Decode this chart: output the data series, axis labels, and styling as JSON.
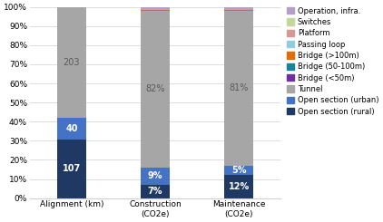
{
  "categories": [
    "Alignment (km)",
    "Construction\n(CO2e)",
    "Maintenance\n(CO2e)"
  ],
  "series": [
    {
      "label": "Open section (rural)",
      "color": "#1F3864",
      "values": [
        30.5,
        7.0,
        12.0
      ]
    },
    {
      "label": "Open section (urban)",
      "color": "#4472C4",
      "values": [
        11.4,
        9.0,
        5.0
      ]
    },
    {
      "label": "Tunnel",
      "color": "#A6A6A6",
      "values": [
        57.9,
        82.0,
        81.0
      ]
    },
    {
      "label": "Bridge (<50m)",
      "color": "#7030A0",
      "values": [
        0.0,
        0.0,
        0.0
      ]
    },
    {
      "label": "Bridge (50-100m)",
      "color": "#17849C",
      "values": [
        0.0,
        0.0,
        0.0
      ]
    },
    {
      "label": "Bridge (>100m)",
      "color": "#E36C0A",
      "values": [
        0.2,
        0.5,
        0.5
      ]
    },
    {
      "label": "Passing loop",
      "color": "#92CDDC",
      "values": [
        0.0,
        0.0,
        0.0
      ]
    },
    {
      "label": "Platform",
      "color": "#DA9694",
      "values": [
        0.2,
        0.3,
        0.3
      ]
    },
    {
      "label": "Switches",
      "color": "#C4D79B",
      "values": [
        0.2,
        0.3,
        0.3
      ]
    },
    {
      "label": "Operation, infra.",
      "color": "#B1A0C7",
      "values": [
        0.6,
        0.9,
        0.9
      ]
    }
  ],
  "ylim": [
    0,
    100
  ],
  "yticks": [
    0,
    10,
    20,
    30,
    40,
    50,
    60,
    70,
    80,
    90,
    100
  ],
  "yticklabels": [
    "0%",
    "10%",
    "20%",
    "30%",
    "40%",
    "50%",
    "60%",
    "70%",
    "80%",
    "90%",
    "100%"
  ],
  "figsize": [
    4.22,
    2.45
  ],
  "dpi": 100,
  "background_color": "#FFFFFF",
  "bar_width": 0.35,
  "legend_fontsize": 6.0,
  "tick_fontsize": 6.5
}
